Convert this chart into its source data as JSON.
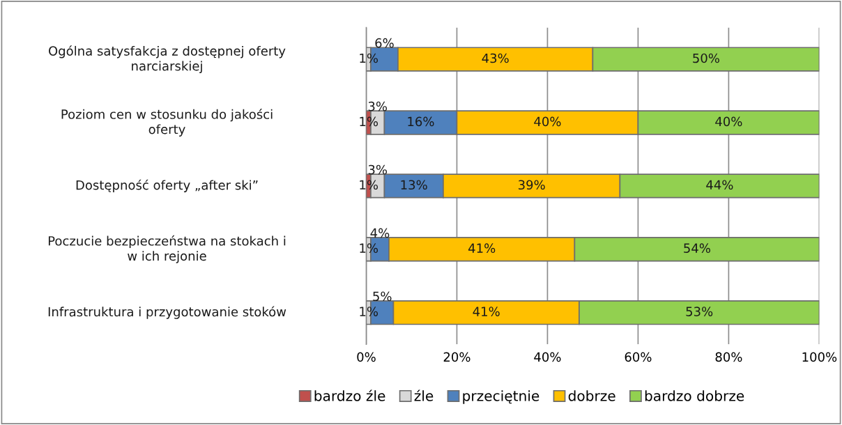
{
  "chart_data": {
    "type": "bar",
    "orientation": "horizontal",
    "stacked": true,
    "categories": [
      "Ogólna satysfakcja z dostępnej oferty narciarskiej",
      "Poziom cen w stosunku do jakości oferty",
      "Dostępność oferty „after ski”",
      "Poczucie bezpieczeństwa na stokach i w ich rejonie",
      "Infrastruktura i przygotowanie stoków"
    ],
    "series": [
      {
        "name": "bardzo źle",
        "color": "#c0504d",
        "values": [
          0,
          1,
          1,
          0,
          0
        ],
        "value_labels": [
          null,
          "1%",
          "1%",
          null,
          null
        ]
      },
      {
        "name": "źle",
        "color": "#d9d9d9",
        "values": [
          1,
          3,
          3,
          1,
          1
        ],
        "value_labels": [
          "1%",
          "3%",
          "3%",
          "1%",
          "1%"
        ]
      },
      {
        "name": "przeciętnie",
        "color": "#4f81bd",
        "values": [
          6,
          16,
          13,
          4,
          5
        ],
        "value_labels": [
          "6%",
          "16%",
          "13%",
          "4%",
          "5%"
        ]
      },
      {
        "name": "dobrze",
        "color": "#ffc000",
        "values": [
          43,
          40,
          39,
          41,
          41
        ],
        "value_labels": [
          "43%",
          "40%",
          "39%",
          "41%",
          "41%"
        ]
      },
      {
        "name": "bardzo dobrze",
        "color": "#92d050",
        "values": [
          50,
          40,
          44,
          54,
          53
        ],
        "value_labels": [
          "50%",
          "40%",
          "44%",
          "54%",
          "53%"
        ]
      }
    ],
    "xlim": [
      0,
      100
    ],
    "xticks": [
      {
        "value": 0,
        "label": "0%"
      },
      {
        "value": 20,
        "label": "20%"
      },
      {
        "value": 40,
        "label": "40%"
      },
      {
        "value": 60,
        "label": "60%"
      },
      {
        "value": 80,
        "label": "80%"
      },
      {
        "value": 100,
        "label": "100%"
      }
    ],
    "grid": "x",
    "legend": "bottom"
  }
}
